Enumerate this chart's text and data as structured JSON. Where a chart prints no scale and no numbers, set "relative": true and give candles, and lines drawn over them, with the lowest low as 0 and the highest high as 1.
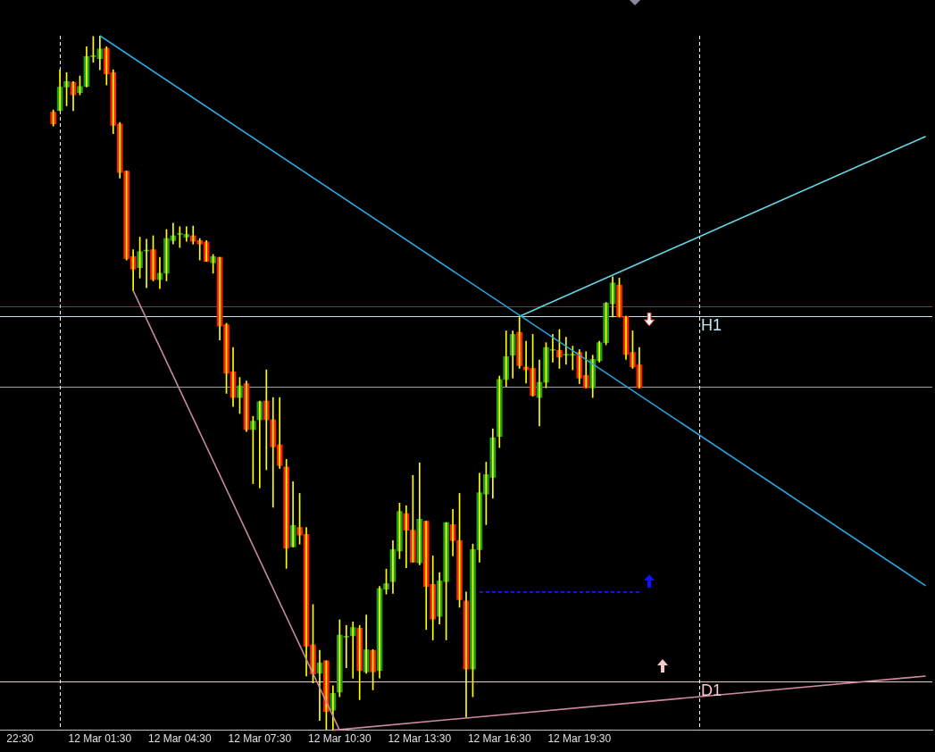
{
  "chart_data": {
    "type": "candlestick",
    "relative": true,
    "x": [
      "--03-11T23:45",
      "--03-12T00:00",
      "--03-12T00:15",
      "--03-12T00:30",
      "--03-12T00:45",
      "--03-12T01:00",
      "--03-12T01:15",
      "--03-12T01:30",
      "--03-12T01:45",
      "--03-12T02:00",
      "--03-12T02:15",
      "--03-12T02:30",
      "--03-12T02:45",
      "--03-12T03:00",
      "--03-12T03:15",
      "--03-12T03:30",
      "--03-12T03:45",
      "--03-12T04:00",
      "--03-12T04:15",
      "--03-12T04:30",
      "--03-12T04:45",
      "--03-12T05:00",
      "--03-12T05:15",
      "--03-12T05:30",
      "--03-12T05:45",
      "--03-12T06:00",
      "--03-12T06:15",
      "--03-12T06:30",
      "--03-12T06:45",
      "--03-12T07:00",
      "--03-12T07:15",
      "--03-12T07:30",
      "--03-12T07:45",
      "--03-12T08:00",
      "--03-12T08:15",
      "--03-12T08:30",
      "--03-12T08:45",
      "--03-12T09:00",
      "--03-12T09:15",
      "--03-12T09:30",
      "--03-12T09:45",
      "--03-12T10:00",
      "--03-12T10:15",
      "--03-12T10:30",
      "--03-12T10:45",
      "--03-12T11:00",
      "--03-12T11:15",
      "--03-12T11:30",
      "--03-12T11:45",
      "--03-12T12:00",
      "--03-12T12:15",
      "--03-12T12:30",
      "--03-12T12:45",
      "--03-12T13:00",
      "--03-12T13:15",
      "--03-12T13:30",
      "--03-12T13:45",
      "--03-12T14:00",
      "--03-12T14:15",
      "--03-12T14:30",
      "--03-12T14:45",
      "--03-12T15:00",
      "--03-12T15:15",
      "--03-12T15:30",
      "--03-12T15:45",
      "--03-12T16:00",
      "--03-12T16:15",
      "--03-12T16:30",
      "--03-12T16:45",
      "--03-12T17:00",
      "--03-12T17:15",
      "--03-12T17:30",
      "--03-12T17:45",
      "--03-12T18:00",
      "--03-12T18:15",
      "--03-12T18:30",
      "--03-12T18:45",
      "--03-12T19:00",
      "--03-12T19:15",
      "--03-12T19:30",
      "--03-12T19:45",
      "--03-12T20:00",
      "--03-12T20:15",
      "--03-12T20:30",
      "--03-12T20:45",
      "--03-12T21:00",
      "--03-12T21:15",
      "--03-12T21:30",
      "--03-12T21:45"
    ],
    "ohlc": [
      [
        0.89,
        0.893,
        0.87,
        0.873
      ],
      [
        0.892,
        0.951,
        0.892,
        0.926
      ],
      [
        0.926,
        0.947,
        0.899,
        0.934
      ],
      [
        0.933,
        0.934,
        0.892,
        0.915
      ],
      [
        0.918,
        0.942,
        0.915,
        0.927
      ],
      [
        0.927,
        0.984,
        0.926,
        0.97
      ],
      [
        0.97,
        0.999,
        0.962,
        0.97
      ],
      [
        0.967,
        1,
        0.951,
        0.981
      ],
      [
        0.982,
        0.984,
        0.929,
        0.945
      ],
      [
        0.947,
        0.951,
        0.859,
        0.871
      ],
      [
        0.873,
        0.875,
        0.795,
        0.803
      ],
      [
        0.805,
        0.805,
        0.677,
        0.679
      ],
      [
        0.682,
        0.692,
        0.633,
        0.664
      ],
      [
        0.666,
        0.71,
        0.651,
        0.689
      ],
      [
        0.69,
        0.707,
        0.637,
        0.69
      ],
      [
        0.692,
        0.712,
        0.647,
        0.649
      ],
      [
        0.649,
        0.681,
        0.636,
        0.658
      ],
      [
        0.658,
        0.721,
        0.647,
        0.708
      ],
      [
        0.705,
        0.73,
        0.7,
        0.712
      ],
      [
        0.714,
        0.725,
        0.695,
        0.714
      ],
      [
        0.71,
        0.725,
        0.704,
        0.714
      ],
      [
        0.712,
        0.726,
        0.7,
        0.704
      ],
      [
        0.705,
        0.708,
        0.677,
        0.7
      ],
      [
        0.703,
        0.705,
        0.675,
        0.675
      ],
      [
        0.673,
        0.685,
        0.658,
        0.682
      ],
      [
        0.681,
        0.681,
        0.562,
        0.582
      ],
      [
        0.584,
        0.586,
        0.485,
        0.514
      ],
      [
        0.516,
        0.551,
        0.466,
        0.479
      ],
      [
        0.479,
        0.508,
        0.456,
        0.496
      ],
      [
        0.499,
        0.503,
        0.43,
        0.433
      ],
      [
        0.433,
        0.452,
        0.355,
        0.445
      ],
      [
        0.447,
        0.474,
        0.349,
        0.473
      ],
      [
        0.474,
        0.519,
        0.375,
        0.447
      ],
      [
        0.447,
        0.479,
        0.321,
        0.408
      ],
      [
        0.411,
        0.479,
        0.377,
        0.381
      ],
      [
        0.379,
        0.39,
        0.233,
        0.262
      ],
      [
        0.264,
        0.358,
        0.264,
        0.295
      ],
      [
        0.292,
        0.341,
        0.268,
        0.281
      ],
      [
        0.282,
        0.292,
        0.078,
        0.121
      ],
      [
        0.123,
        0.181,
        0.068,
        0.081
      ],
      [
        0.082,
        0.115,
        0.014,
        0.097
      ],
      [
        0.1,
        0.1,
        0.001,
        0.027
      ],
      [
        0.029,
        0.064,
        0,
        0.053
      ],
      [
        0.055,
        0.159,
        0.048,
        0.137
      ],
      [
        0.134,
        0.151,
        0.09,
        0.134
      ],
      [
        0.136,
        0.156,
        0.075,
        0.148
      ],
      [
        0.147,
        0.151,
        0.044,
        0.086
      ],
      [
        0.084,
        0.166,
        0.082,
        0.116
      ],
      [
        0.115,
        0.116,
        0.058,
        0.084
      ],
      [
        0.086,
        0.207,
        0.075,
        0.204
      ],
      [
        0.203,
        0.232,
        0.196,
        0.211
      ],
      [
        0.214,
        0.273,
        0.197,
        0.26
      ],
      [
        0.258,
        0.327,
        0.247,
        0.315
      ],
      [
        0.312,
        0.323,
        0.234,
        0.288
      ],
      [
        0.288,
        0.367,
        0.242,
        0.242
      ],
      [
        0.241,
        0.385,
        0.238,
        0.304
      ],
      [
        0.301,
        0.301,
        0.145,
        0.207
      ],
      [
        0.21,
        0.251,
        0.13,
        0.16
      ],
      [
        0.164,
        0.227,
        0.153,
        0.215
      ],
      [
        0.214,
        0.299,
        0.13,
        0.299
      ],
      [
        0.296,
        0.318,
        0.251,
        0.273
      ],
      [
        0.273,
        0.341,
        0.177,
        0.188
      ],
      [
        0.186,
        0.199,
        0.019,
        0.088
      ],
      [
        0.088,
        0.268,
        0.048,
        0.26
      ],
      [
        0.26,
        0.37,
        0.242,
        0.342
      ],
      [
        0.34,
        0.386,
        0.296,
        0.368
      ],
      [
        0.364,
        0.434,
        0.334,
        0.421
      ],
      [
        0.423,
        0.51,
        0.407,
        0.505
      ],
      [
        0.505,
        0.575,
        0.495,
        0.538
      ],
      [
        0.54,
        0.575,
        0.507,
        0.57
      ],
      [
        0.573,
        0.596,
        0.521,
        0.525
      ],
      [
        0.523,
        0.56,
        0.5,
        0.519
      ],
      [
        0.521,
        0.57,
        0.481,
        0.482
      ],
      [
        0.479,
        0.533,
        0.438,
        0.501
      ],
      [
        0.501,
        0.558,
        0.493,
        0.551
      ],
      [
        0.547,
        0.57,
        0.53,
        0.547
      ],
      [
        0.547,
        0.577,
        0.521,
        0.537
      ],
      [
        0.54,
        0.566,
        0.527,
        0.54
      ],
      [
        0.54,
        0.553,
        0.519,
        0.54
      ],
      [
        0.544,
        0.548,
        0.499,
        0.507
      ],
      [
        0.511,
        0.545,
        0.493,
        0.493
      ],
      [
        0.493,
        0.54,
        0.479,
        0.534
      ],
      [
        0.532,
        0.56,
        0.53,
        0.558
      ],
      [
        0.558,
        0.616,
        0.555,
        0.615
      ],
      [
        0.614,
        0.653,
        0.595,
        0.644
      ],
      [
        0.641,
        0.651,
        0.595,
        0.595
      ],
      [
        0.596,
        0.596,
        0.534,
        0.541
      ],
      [
        0.544,
        0.575,
        0.521,
        0.523
      ],
      [
        0.526,
        0.551,
        0.493,
        0.493
      ]
    ],
    "color": "#ffff00",
    "colors": [
      "#ff2200",
      "#1ea01e",
      "#1ea01e",
      "#ff2200",
      "#1ea01e",
      "#1ea01e",
      "#1ea01e",
      "#1ea01e",
      "#ff2200",
      "#ff2200",
      "#ff2200",
      "#ff2200",
      "#ff2200",
      "#1ea01e",
      "#1ea01e",
      "#ff2200",
      "#1ea01e",
      "#1ea01e",
      "#1ea01e",
      "#1ea01e",
      "#1ea01e",
      "#ff2200",
      "#ff2200",
      "#ff2200",
      "#1ea01e",
      "#ff2200",
      "#ff2200",
      "#ff2200",
      "#1ea01e",
      "#ff2200",
      "#1ea01e",
      "#1ea01e",
      "#ff2200",
      "#ff2200",
      "#ff2200",
      "#ff2200",
      "#1ea01e",
      "#ff2200",
      "#ff2200",
      "#ff2200",
      "#1ea01e",
      "#ff2200",
      "#1ea01e",
      "#1ea01e",
      "#1ea01e",
      "#1ea01e",
      "#ff2200",
      "#1ea01e",
      "#ff2200",
      "#1ea01e",
      "#1ea01e",
      "#1ea01e",
      "#1ea01e",
      "#ff2200",
      "#ff2200",
      "#1ea01e",
      "#ff2200",
      "#ff2200",
      "#1ea01e",
      "#1ea01e",
      "#ff2200",
      "#ff2200",
      "#ff2200",
      "#1ea01e",
      "#1ea01e",
      "#1ea01e",
      "#1ea01e",
      "#1ea01e",
      "#1ea01e",
      "#1ea01e",
      "#ff2200",
      "#ff2200",
      "#ff2200",
      "#1ea01e",
      "#1ea01e",
      "#1ea01e",
      "#ff2200",
      "#1ea01e",
      "#1ea01e",
      "#ff2200",
      "#ff2200",
      "#1ea01e",
      "#1ea01e",
      "#1ea01e",
      "#1ea01e",
      "#ff2200",
      "#ff2200",
      "#ff2200",
      "#ff2200"
    ],
    "xlim": [
      "--03-11T21:45",
      "--03-13T08:45"
    ],
    "xticks": [
      {
        "value": "--03-11T22:30",
        "label": "22:30"
      },
      {
        "value": "--03-12T01:30",
        "label": "12 Mar 01:30"
      },
      {
        "value": "--03-12T04:30",
        "label": "12 Mar 04:30"
      },
      {
        "value": "--03-12T07:30",
        "label": "12 Mar 07:30"
      },
      {
        "value": "--03-12T10:30",
        "label": "12 Mar 10:30"
      },
      {
        "value": "--03-12T13:30",
        "label": "12 Mar 13:30"
      },
      {
        "value": "--03-12T16:30",
        "label": "12 Mar 16:30"
      },
      {
        "value": "--03-12T19:30",
        "label": "12 Mar 19:30"
      }
    ],
    "series": [
      {
        "type": "line",
        "color": "#29a8e0",
        "x": [
          "--03-12T01:30",
          "--03-13T08:30"
        ],
        "values": [
          1,
          0.208
        ]
      },
      {
        "type": "line",
        "color": "#66d6e6",
        "x": [
          "--03-12T17:15",
          "--03-13T08:30"
        ],
        "values": [
          0.596,
          0.855
        ]
      },
      {
        "type": "line",
        "color": "#c9899a",
        "x": [
          "--03-12T02:45",
          "--03-12T10:30"
        ],
        "values": [
          0.633,
          0
        ]
      },
      {
        "type": "line",
        "color": "#d08aa0",
        "x": [
          "--03-12T10:15",
          "--03-13T08:30"
        ],
        "values": [
          0,
          0.078
        ]
      },
      {
        "type": "line",
        "color": "#1a1aff",
        "line_style": "dashed",
        "x": [
          "--03-12T15:45",
          "--03-12T21:45"
        ],
        "values": [
          0.199,
          0.199
        ]
      }
    ],
    "ref_lines": [
      {
        "axis": "y",
        "value": 0.61,
        "color": "#b22222"
      },
      {
        "axis": "y",
        "value": 0.596,
        "color": "#c8e4ee",
        "label": "H1"
      },
      {
        "axis": "y",
        "value": 0.495,
        "color": "#a0a0a0"
      },
      {
        "axis": "y",
        "value": 0.07,
        "color": "#f4c6cc",
        "label": "D1"
      },
      {
        "axis": "x",
        "value": "--03-12T00:00",
        "color": "#ffffff",
        "line_style": "dashed"
      },
      {
        "axis": "x",
        "value": "--03-13T00:00",
        "color": "#ffffff",
        "line_style": "dashed"
      }
    ]
  }
}
